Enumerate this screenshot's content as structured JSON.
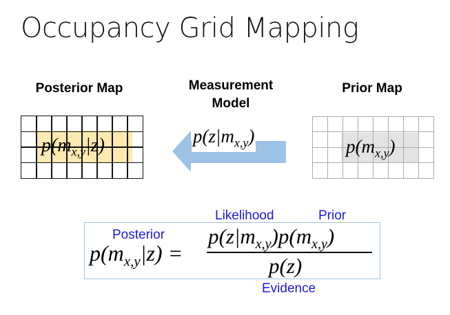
{
  "title": "Occupancy Grid Mapping",
  "posterior_map": {
    "label": "Posterior Map",
    "cell_text": "p(m",
    "sub": "x,y",
    "tail": "|z)",
    "highlight_color": "#fdeab0"
  },
  "measurement": {
    "label_line1": "Measurement",
    "label_line2": "Model",
    "formula": "p(z|m",
    "sub": "x,y",
    "tail": ")",
    "arrow_color": "#9dc3e6"
  },
  "prior_map": {
    "label": "Prior Map",
    "cell_text": "p(m",
    "sub": "x,y",
    "tail": ")",
    "highlight_color": "#e3e3e3"
  },
  "grid": {
    "columns": 8,
    "rows": 4
  },
  "equation": {
    "lhs": "p(m",
    "lhs_sub": "x,y",
    "lhs_tail": "|z) =",
    "numerator": "p(z|m",
    "num_sub1": "x,y",
    "num_mid": ")p(m",
    "num_sub2": "x,y",
    "num_tail": ")",
    "denominator": "p(z)",
    "labels": {
      "posterior": "Posterior",
      "likelihood": "Likelihood",
      "prior": "Prior",
      "evidence": "Evidence"
    }
  }
}
